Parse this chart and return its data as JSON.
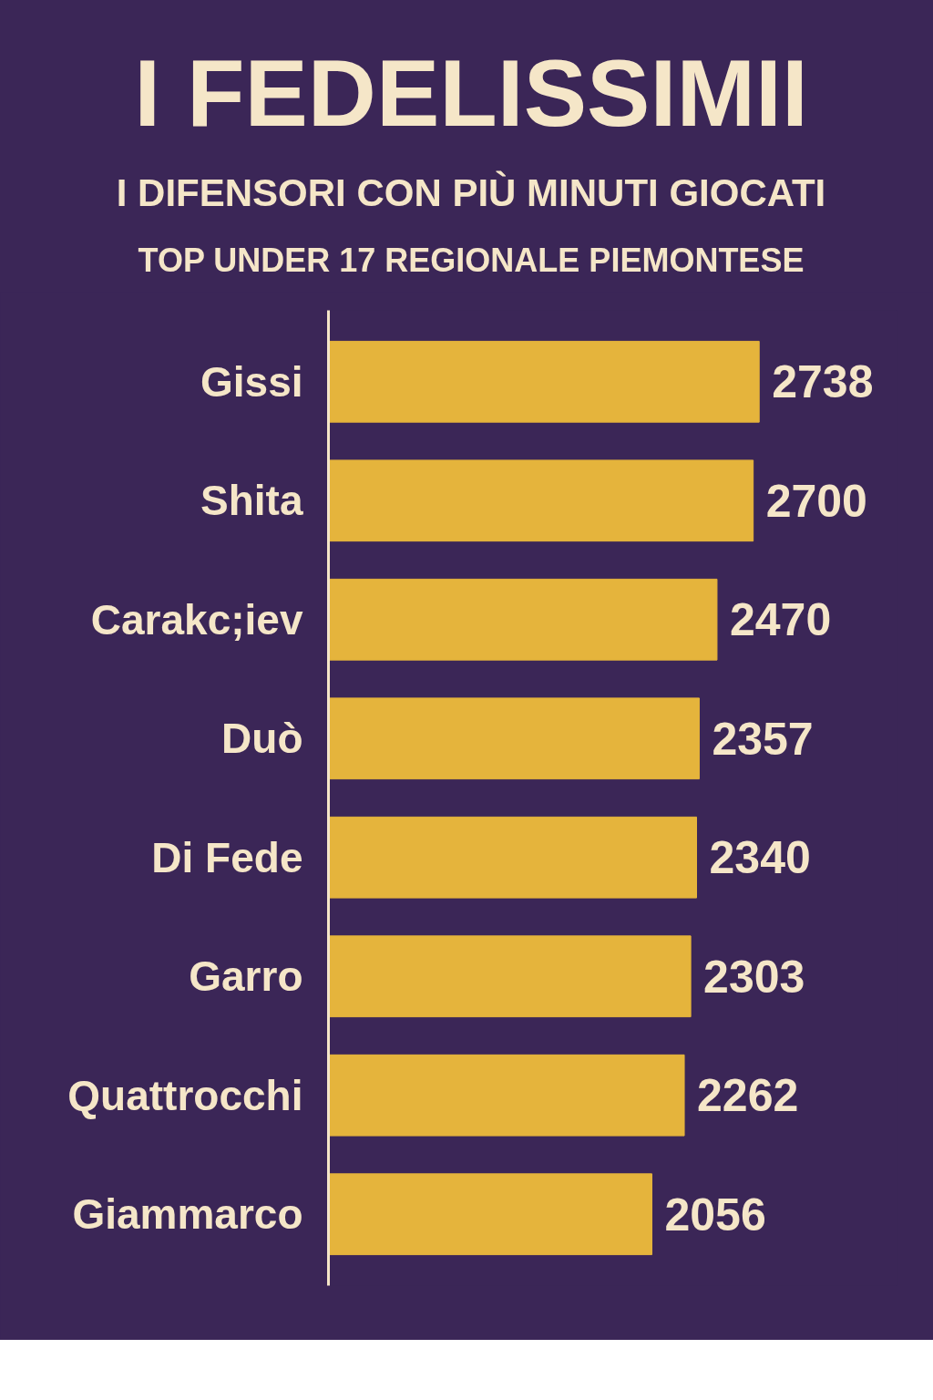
{
  "chart_data": {
    "type": "bar",
    "orientation": "horizontal",
    "title": "I FEDELISSIMII",
    "subtitle": "I DIFENSORI CON PIÙ MINUTI GIOCATI",
    "annotations": [
      "TOP UNDER 17 REGIONALE PIEMONTESE"
    ],
    "categories": [
      "Gissi",
      "Shita",
      "Carakc;iev",
      "Duò",
      "Di Fede",
      "Garro",
      "Quattrocchi",
      "Giammarco"
    ],
    "values": [
      2738,
      2700,
      2470,
      2357,
      2340,
      2303,
      2262,
      2056
    ],
    "color": "#e5b43c",
    "data_labels": true,
    "grid": false,
    "tick_labels": "y"
  }
}
